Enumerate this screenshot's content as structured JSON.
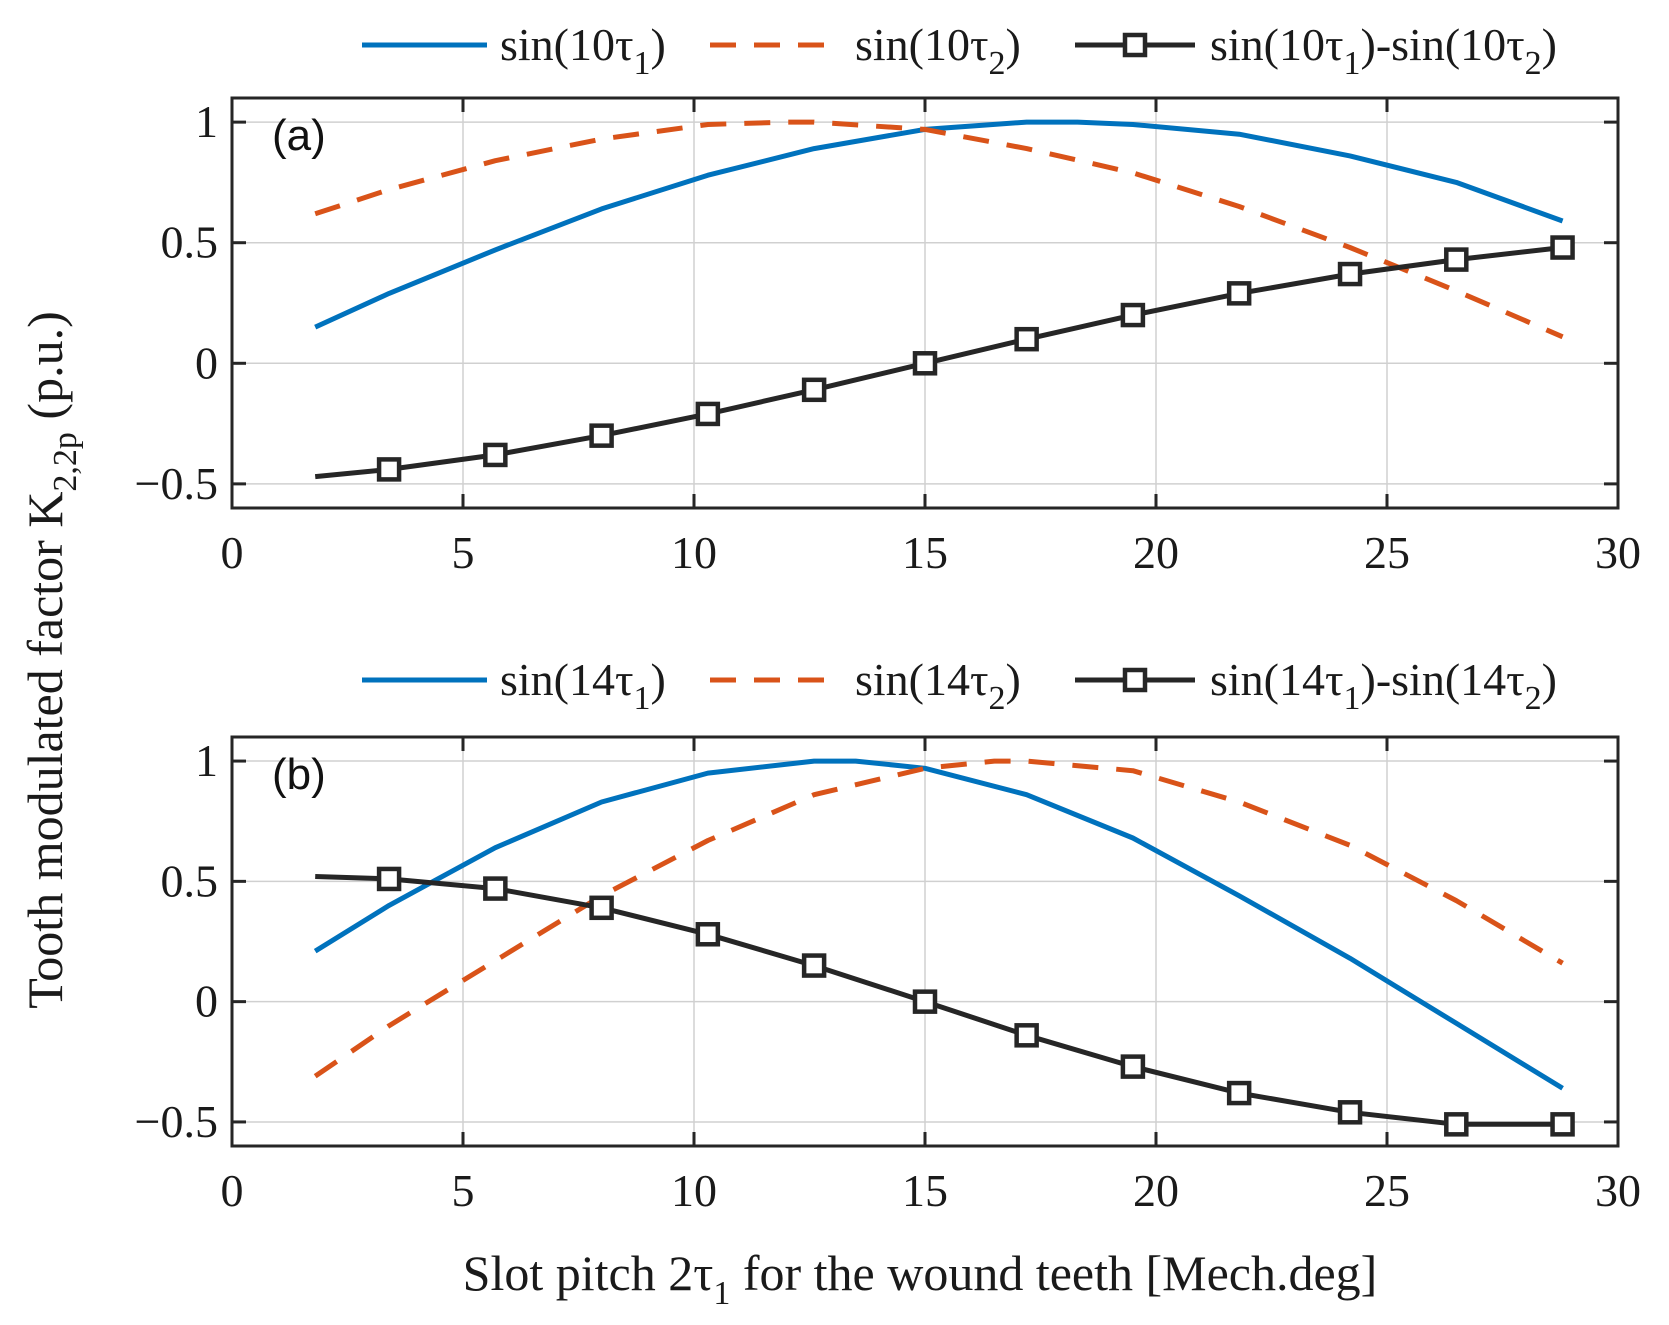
{
  "figure": {
    "ylabel_main": "Tooth modulated factor K",
    "ylabel_sub": "2,2p",
    "ylabel_unit": " (p.u.)",
    "xlabel_main": "Slot pitch 2τ",
    "xlabel_sub": "1",
    "xlabel_rest": "  for the wound teeth [Mech.deg]"
  },
  "colors": {
    "blue": "#0072BD",
    "orange": "#D95319",
    "black": "#262626",
    "grid": "#d0d0d0",
    "axes": "#262626"
  },
  "chart_data": [
    {
      "type": "line",
      "panel_label": "(a)",
      "xlim": [
        0,
        30
      ],
      "ylim": [
        -0.6,
        1.1
      ],
      "grid": true,
      "legend_position": "top",
      "x_ticks": [
        0,
        5,
        10,
        15,
        20,
        25,
        30
      ],
      "y_ticks": [
        1,
        0.5,
        0,
        -0.5
      ],
      "x_tick_labels": [
        "0",
        "5",
        "10",
        "15",
        "20",
        "25",
        "30"
      ],
      "y_tick_labels": [
        "1",
        "0.5",
        "0",
        "−0.5"
      ],
      "legend": [
        {
          "pre": "sin(10τ",
          "sub": "1",
          "post": ")"
        },
        {
          "pre": "sin(10τ",
          "sub": "2",
          "post": ")"
        },
        {
          "pre": "sin(10τ",
          "sub": "1",
          "mid": ")-sin(10τ",
          "sub2": "2",
          "post": ")"
        }
      ],
      "series": [
        {
          "name": "sin(10τ1)",
          "style": "solid",
          "color": "blue",
          "x": [
            1.8,
            3.4,
            5.7,
            8.0,
            10.3,
            12.6,
            15.0,
            17.2,
            18.3,
            19.5,
            21.8,
            24.2,
            26.5,
            28.8
          ],
          "values": [
            0.15,
            0.29,
            0.47,
            0.64,
            0.78,
            0.89,
            0.97,
            1.0,
            1.0,
            0.99,
            0.95,
            0.86,
            0.75,
            0.59
          ]
        },
        {
          "name": "sin(10τ2)",
          "style": "dashed",
          "color": "orange",
          "x": [
            1.8,
            3.4,
            5.7,
            8.0,
            10.3,
            12.0,
            12.6,
            15.0,
            17.2,
            19.5,
            21.8,
            24.2,
            26.5,
            28.8
          ],
          "values": [
            0.62,
            0.72,
            0.84,
            0.93,
            0.99,
            1.0,
            1.0,
            0.97,
            0.89,
            0.79,
            0.65,
            0.48,
            0.3,
            0.11
          ]
        },
        {
          "name": "sin(10τ1)-sin(10τ2)",
          "style": "solid-marker",
          "color": "black",
          "x": [
            1.8,
            3.4,
            5.7,
            8.0,
            10.3,
            12.6,
            15.0,
            17.2,
            19.5,
            21.8,
            24.2,
            26.5,
            28.8
          ],
          "values": [
            -0.47,
            -0.44,
            -0.38,
            -0.3,
            -0.21,
            -0.11,
            0.0,
            0.1,
            0.2,
            0.29,
            0.37,
            0.43,
            0.48
          ],
          "markers": [
            false,
            true,
            true,
            true,
            true,
            true,
            true,
            true,
            true,
            true,
            true,
            true,
            true
          ]
        }
      ]
    },
    {
      "type": "line",
      "panel_label": "(b)",
      "xlim": [
        0,
        30
      ],
      "ylim": [
        -0.6,
        1.1
      ],
      "grid": true,
      "legend_position": "top",
      "x_ticks": [
        0,
        5,
        10,
        15,
        20,
        25,
        30
      ],
      "y_ticks": [
        1,
        0.5,
        0,
        -0.5
      ],
      "x_tick_labels": [
        "0",
        "5",
        "10",
        "15",
        "20",
        "25",
        "30"
      ],
      "y_tick_labels": [
        "1",
        "0.5",
        "0",
        "−0.5"
      ],
      "legend": [
        {
          "pre": "sin(14τ",
          "sub": "1",
          "post": ")"
        },
        {
          "pre": "sin(14τ",
          "sub": "2",
          "post": ")"
        },
        {
          "pre": "sin(14τ",
          "sub": "1",
          "mid": ")-sin(14τ",
          "sub2": "2",
          "post": ")"
        }
      ],
      "series": [
        {
          "name": "sin(14τ1)",
          "style": "solid",
          "color": "blue",
          "x": [
            1.8,
            3.4,
            5.7,
            8.0,
            10.3,
            12.6,
            13.5,
            15.0,
            17.2,
            19.5,
            21.8,
            24.2,
            26.5,
            28.8
          ],
          "values": [
            0.21,
            0.4,
            0.64,
            0.83,
            0.95,
            1.0,
            1.0,
            0.97,
            0.86,
            0.68,
            0.44,
            0.18,
            -0.09,
            -0.36
          ]
        },
        {
          "name": "sin(14τ2)",
          "style": "dashed",
          "color": "orange",
          "x": [
            1.8,
            3.4,
            5.7,
            8.0,
            10.3,
            12.6,
            15.0,
            16.5,
            17.2,
            19.5,
            21.8,
            24.2,
            26.5,
            28.8
          ],
          "values": [
            -0.31,
            -0.1,
            0.17,
            0.44,
            0.67,
            0.86,
            0.97,
            1.0,
            1.0,
            0.96,
            0.83,
            0.65,
            0.42,
            0.16
          ]
        },
        {
          "name": "sin(14τ1)-sin(14τ2)",
          "style": "solid-marker",
          "color": "black",
          "x": [
            1.8,
            3.4,
            5.7,
            8.0,
            10.3,
            12.6,
            15.0,
            17.2,
            19.5,
            21.8,
            24.2,
            26.5,
            28.8
          ],
          "values": [
            0.52,
            0.51,
            0.47,
            0.39,
            0.28,
            0.15,
            0.0,
            -0.14,
            -0.27,
            -0.38,
            -0.46,
            -0.51,
            -0.51
          ],
          "markers": [
            false,
            true,
            true,
            true,
            true,
            true,
            true,
            true,
            true,
            true,
            true,
            true,
            true
          ]
        }
      ]
    }
  ]
}
